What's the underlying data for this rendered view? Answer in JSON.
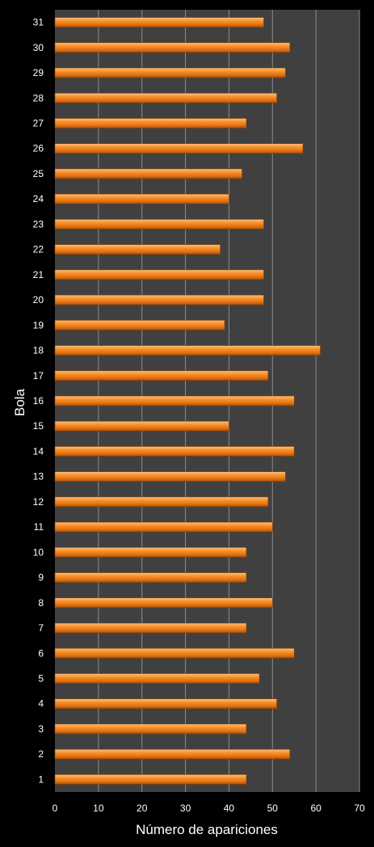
{
  "chart_data": {
    "type": "bar",
    "orientation": "horizontal",
    "xlabel": "Número de apariciones",
    "ylabel": "Bola",
    "xlim": [
      0,
      70
    ],
    "x_ticks": [
      "0",
      "10",
      "20",
      "30",
      "40",
      "50",
      "60",
      "70"
    ],
    "grid": "vertical",
    "categories": [
      "1",
      "2",
      "3",
      "4",
      "5",
      "6",
      "7",
      "8",
      "9",
      "10",
      "11",
      "12",
      "13",
      "14",
      "15",
      "16",
      "17",
      "18",
      "19",
      "20",
      "21",
      "22",
      "23",
      "24",
      "25",
      "26",
      "27",
      "28",
      "29",
      "30",
      "31"
    ],
    "values": [
      44,
      54,
      44,
      51,
      47,
      55,
      44,
      50,
      44,
      44,
      50,
      49,
      53,
      55,
      40,
      55,
      49,
      61,
      39,
      48,
      48,
      38,
      48,
      40,
      43,
      57,
      44,
      51,
      53,
      54,
      48
    ],
    "colors": {
      "background": "#000000",
      "plot_area": "#404040",
      "bar": "#f07f1c",
      "bar_highlight": "#ffc07a",
      "bar_shadow": "#a84e08",
      "gridline": "#8c8c8c",
      "text": "#ffffff"
    }
  }
}
